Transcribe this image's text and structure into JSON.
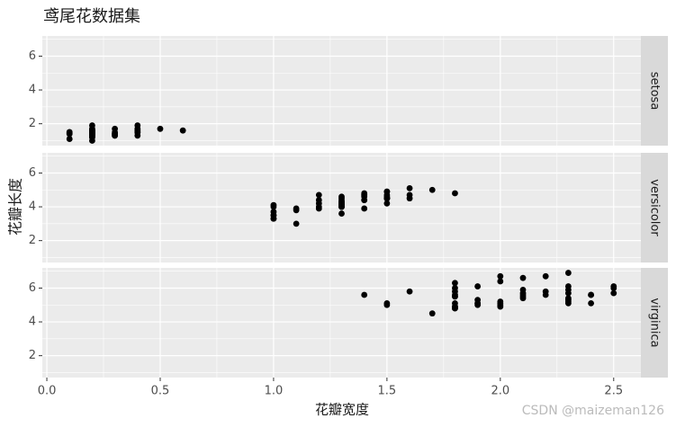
{
  "chart_data": {
    "type": "scatter",
    "title": "鸢尾花数据集",
    "x_label": "花瓣宽度",
    "y_label": "花瓣长度",
    "color": "#000000",
    "grid": true,
    "xlim": [
      -0.02,
      2.62
    ],
    "xticks": [
      {
        "value": 0,
        "label": "0.0"
      },
      0.5,
      {
        "value": 1,
        "label": "1.0"
      },
      1.5,
      {
        "value": 2,
        "label": "2.0"
      },
      2.5
    ],
    "ylim": [
      0.705,
      7.195
    ],
    "yticks": [
      2,
      4,
      6
    ],
    "facets": [
      {
        "name": "setosa",
        "x": [
          0.2,
          0.2,
          0.2,
          0.2,
          0.2,
          0.4,
          0.3,
          0.2,
          0.2,
          0.1,
          0.2,
          0.2,
          0.1,
          0.1,
          0.2,
          0.4,
          0.4,
          0.3,
          0.3,
          0.3,
          0.2,
          0.4,
          0.2,
          0.5,
          0.2,
          0.2,
          0.4,
          0.2,
          0.2,
          0.2,
          0.2,
          0.4,
          0.1,
          0.2,
          0.2,
          0.2,
          0.2,
          0.1,
          0.2,
          0.2,
          0.3,
          0.3,
          0.2,
          0.6,
          0.4,
          0.3,
          0.2,
          0.2,
          0.2,
          0.2
        ],
        "y": [
          1.4,
          1.4,
          1.3,
          1.5,
          1.4,
          1.7,
          1.4,
          1.5,
          1.4,
          1.5,
          1.5,
          1.6,
          1.4,
          1.1,
          1.2,
          1.5,
          1.3,
          1.4,
          1.7,
          1.5,
          1.7,
          1.5,
          1.0,
          1.7,
          1.9,
          1.6,
          1.6,
          1.5,
          1.4,
          1.6,
          1.6,
          1.5,
          1.5,
          1.4,
          1.5,
          1.2,
          1.3,
          1.4,
          1.3,
          1.5,
          1.3,
          1.3,
          1.3,
          1.6,
          1.9,
          1.4,
          1.6,
          1.4,
          1.5,
          1.4
        ]
      },
      {
        "name": "versicolor",
        "x": [
          1.4,
          1.5,
          1.5,
          1.3,
          1.5,
          1.3,
          1.6,
          1.0,
          1.3,
          1.4,
          1.0,
          1.5,
          1.0,
          1.4,
          1.3,
          1.4,
          1.5,
          1.0,
          1.5,
          1.1,
          1.8,
          1.3,
          1.5,
          1.2,
          1.3,
          1.4,
          1.4,
          1.7,
          1.5,
          1.0,
          1.1,
          1.0,
          1.2,
          1.6,
          1.5,
          1.6,
          1.5,
          1.3,
          1.3,
          1.3,
          1.2,
          1.4,
          1.2,
          1.0,
          1.3,
          1.2,
          1.3,
          1.3,
          1.1,
          1.3
        ],
        "y": [
          4.7,
          4.5,
          4.9,
          4.0,
          4.6,
          4.5,
          4.7,
          3.3,
          4.6,
          3.9,
          3.5,
          4.2,
          4.0,
          4.7,
          3.6,
          4.4,
          4.5,
          4.1,
          4.5,
          3.9,
          4.8,
          4.0,
          4.9,
          4.7,
          4.3,
          4.4,
          4.8,
          5.0,
          4.5,
          3.5,
          3.8,
          3.7,
          3.9,
          5.1,
          4.5,
          4.5,
          4.7,
          4.4,
          4.1,
          4.0,
          4.4,
          4.6,
          4.0,
          3.3,
          4.2,
          4.2,
          4.2,
          4.3,
          3.0,
          4.1
        ]
      },
      {
        "name": "virginica",
        "x": [
          2.5,
          1.9,
          2.1,
          1.8,
          2.2,
          2.1,
          1.7,
          1.8,
          1.8,
          2.5,
          2.0,
          1.9,
          2.1,
          2.0,
          2.4,
          2.3,
          1.8,
          2.2,
          2.3,
          1.5,
          2.3,
          2.0,
          2.0,
          1.8,
          2.1,
          1.8,
          1.8,
          1.8,
          2.1,
          1.6,
          1.9,
          2.0,
          2.2,
          1.5,
          1.4,
          2.3,
          2.4,
          1.8,
          1.8,
          2.1,
          2.4,
          2.3,
          1.9,
          2.3,
          2.5,
          2.3,
          1.9,
          2.0,
          2.3,
          1.8
        ],
        "y": [
          6.0,
          5.1,
          5.9,
          5.6,
          5.8,
          6.6,
          4.5,
          6.3,
          5.8,
          6.1,
          5.1,
          5.3,
          5.5,
          5.0,
          5.1,
          5.3,
          5.5,
          6.7,
          6.9,
          5.0,
          5.7,
          4.9,
          6.7,
          4.9,
          5.7,
          6.0,
          4.8,
          4.9,
          5.6,
          5.8,
          6.1,
          6.4,
          5.6,
          5.1,
          5.6,
          6.1,
          5.6,
          5.5,
          4.8,
          5.4,
          5.6,
          5.1,
          5.1,
          5.9,
          5.7,
          5.2,
          5.0,
          5.2,
          5.4,
          5.1
        ]
      }
    ]
  },
  "watermark": "CSDN @maizeman126"
}
